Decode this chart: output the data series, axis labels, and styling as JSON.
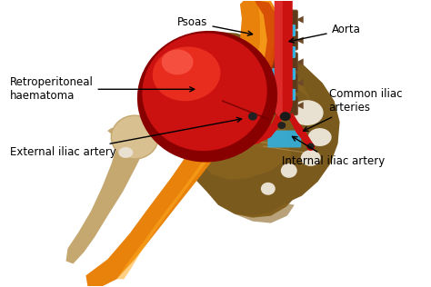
{
  "bg_color": "#ffffff",
  "labels": {
    "psoas": "Psoas",
    "aorta": "Aorta",
    "retro": "Retroperitoneal\nhaematoma",
    "common_iliac": "Common iliac\narteries",
    "external_iliac": "External iliac artery",
    "internal_iliac": "Internal iliac artery"
  },
  "colors": {
    "pelvis_dark": "#7B5A1E",
    "pelvis_mid": "#8B6520",
    "pelvis_light": "#A07840",
    "pelvis_lighter": "#C4A060",
    "psoas_orange": "#E8820A",
    "psoas_orange2": "#F0960C",
    "psoas_highlight": "#FFAA20",
    "psoas_red_edge": "#CC3300",
    "hema_dark": "#880000",
    "hema_mid": "#CC1111",
    "hema_bright": "#EE3322",
    "hema_shine": "#FF6655",
    "aorta_red": "#CC1111",
    "aorta_dark": "#991111",
    "vertebra_dark": "#5C3A1A",
    "vertebra_med": "#6E4A28",
    "iliac_blue": "#30B0E0",
    "iliac_blue2": "#50C8F0",
    "femur_tan": "#C4A870",
    "femur_light": "#D8C090",
    "femur_dark": "#A08050",
    "dot_dark": "#222222",
    "dot_red": "#990000",
    "white_hole": "#E8E0D0"
  }
}
